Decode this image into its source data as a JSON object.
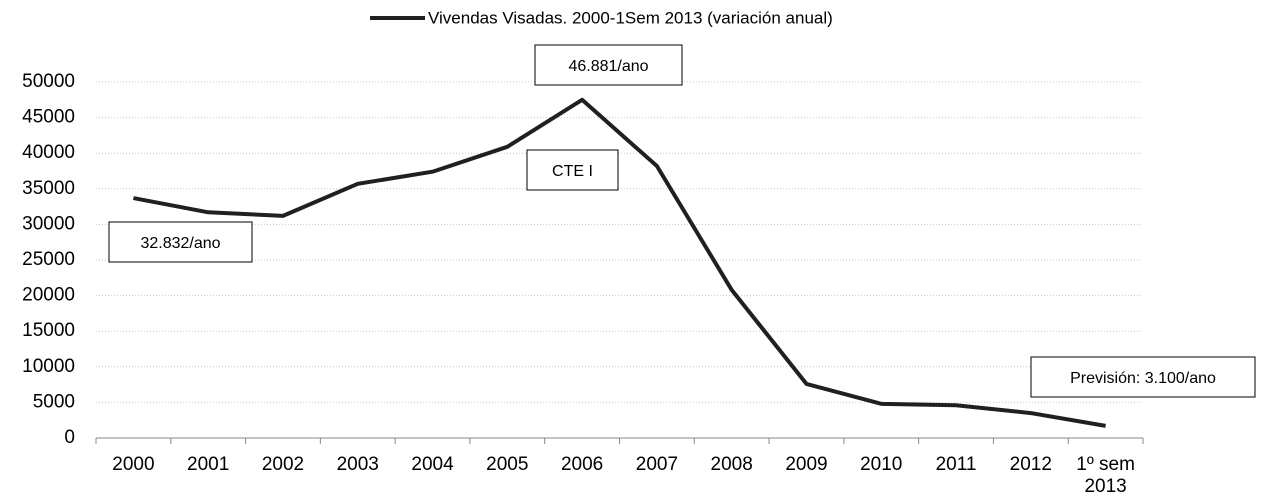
{
  "chart_data": {
    "type": "line",
    "categories": [
      "2000",
      "2001",
      "2002",
      "2003",
      "2004",
      "2005",
      "2006",
      "2007",
      "2008",
      "2009",
      "2010",
      "2011",
      "2012",
      "1º sem 2013"
    ],
    "series": [
      {
        "name": "Vivendas Visadas. 2000-1Sem 2013 (variación anual)",
        "color": "#231f20",
        "values": [
          33700,
          31700,
          31200,
          35700,
          37400,
          40900,
          47500,
          38200,
          20800,
          7600,
          4800,
          4600,
          3500,
          1700
        ]
      }
    ],
    "ylim": [
      0,
      50000
    ],
    "yticks": [
      0,
      5000,
      10000,
      15000,
      20000,
      25000,
      30000,
      35000,
      40000,
      45000,
      50000
    ],
    "grid": true,
    "legend": "top",
    "annotations": [
      "46.881/ano",
      "CTE I",
      "32.832/ano",
      "Previsión: 3.100/ano"
    ]
  }
}
